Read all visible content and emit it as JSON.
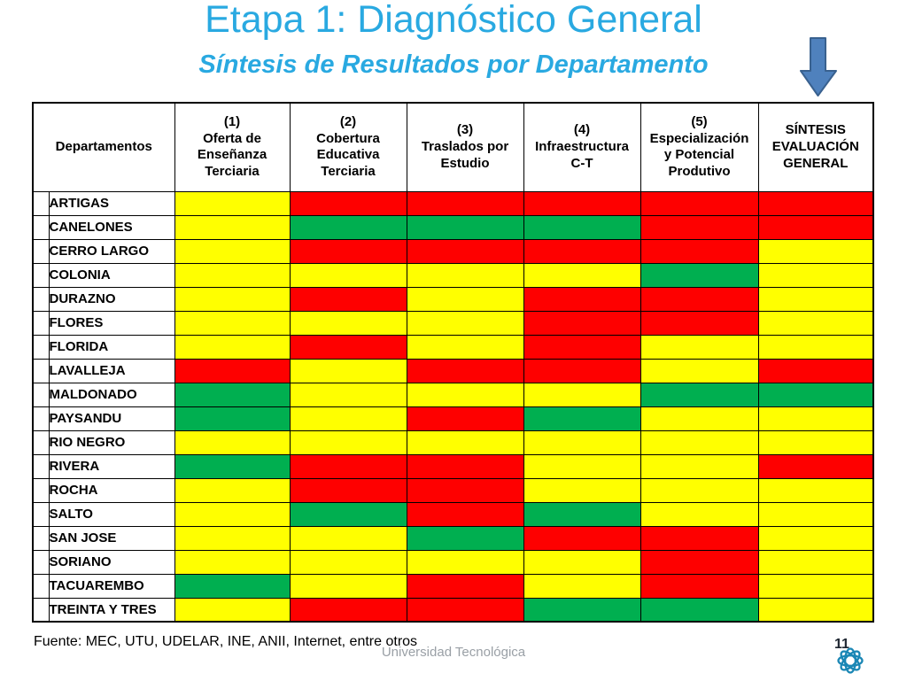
{
  "slide": {
    "title": "Etapa 1: Diagnóstico General",
    "subtitle": "Síntesis de Resultados por Departamento"
  },
  "table": {
    "columns": [
      "Departamentos",
      "(1)\nOferta de\nEnseñanza\nTerciaria",
      "(2)\nCobertura\nEducativa\nTerciaria",
      "(3)\nTraslados por\nEstudio",
      "(4)\nInfraestructura\nC-T",
      "(5)\nEspecialización\ny Potencial\nProdutivo",
      "SÍNTESIS\nEVALUACIÓN\nGENERAL"
    ],
    "rows": [
      {
        "name": "ARTIGAS",
        "ratings": [
          "yellow",
          "red",
          "red",
          "red",
          "red",
          "red"
        ]
      },
      {
        "name": "CANELONES",
        "ratings": [
          "yellow",
          "green",
          "green",
          "green",
          "red",
          "red"
        ]
      },
      {
        "name": "CERRO LARGO",
        "ratings": [
          "yellow",
          "red",
          "red",
          "red",
          "red",
          "yellow"
        ]
      },
      {
        "name": "COLONIA",
        "ratings": [
          "yellow",
          "yellow",
          "yellow",
          "yellow",
          "green",
          "yellow"
        ]
      },
      {
        "name": "DURAZNO",
        "ratings": [
          "yellow",
          "red",
          "yellow",
          "red",
          "red",
          "yellow"
        ]
      },
      {
        "name": "FLORES",
        "ratings": [
          "yellow",
          "yellow",
          "yellow",
          "red",
          "red",
          "yellow"
        ]
      },
      {
        "name": "FLORIDA",
        "ratings": [
          "yellow",
          "red",
          "yellow",
          "red",
          "yellow",
          "yellow"
        ]
      },
      {
        "name": "LAVALLEJA",
        "ratings": [
          "red",
          "yellow",
          "red",
          "red",
          "yellow",
          "red"
        ]
      },
      {
        "name": "MALDONADO",
        "ratings": [
          "green",
          "yellow",
          "yellow",
          "yellow",
          "green",
          "green"
        ]
      },
      {
        "name": "PAYSANDU",
        "ratings": [
          "green",
          "yellow",
          "red",
          "green",
          "yellow",
          "yellow"
        ]
      },
      {
        "name": "RIO NEGRO",
        "ratings": [
          "yellow",
          "yellow",
          "yellow",
          "yellow",
          "yellow",
          "yellow"
        ]
      },
      {
        "name": "RIVERA",
        "ratings": [
          "green",
          "red",
          "red",
          "yellow",
          "yellow",
          "red"
        ]
      },
      {
        "name": "ROCHA",
        "ratings": [
          "yellow",
          "red",
          "red",
          "yellow",
          "yellow",
          "yellow"
        ]
      },
      {
        "name": "SALTO",
        "ratings": [
          "yellow",
          "green",
          "red",
          "green",
          "yellow",
          "yellow"
        ]
      },
      {
        "name": "SAN JOSE",
        "ratings": [
          "yellow",
          "yellow",
          "green",
          "red",
          "red",
          "yellow"
        ]
      },
      {
        "name": "SORIANO",
        "ratings": [
          "yellow",
          "yellow",
          "yellow",
          "yellow",
          "red",
          "yellow"
        ]
      },
      {
        "name": "TACUAREMBO",
        "ratings": [
          "green",
          "yellow",
          "red",
          "yellow",
          "red",
          "yellow"
        ]
      },
      {
        "name": "TREINTA Y TRES",
        "ratings": [
          "yellow",
          "red",
          "red",
          "green",
          "green",
          "yellow"
        ]
      }
    ]
  },
  "legend_colors": {
    "red": "#fe0000",
    "yellow": "#ffff00",
    "green": "#00af50"
  },
  "accent_colors": {
    "title_cyan": "#29a9e1",
    "arrow_fill": "#4f81bd",
    "arrow_stroke": "#39618f",
    "logo_teal": "#1b87b5"
  },
  "icons": {
    "arrow_down": "blue-down-arrow",
    "logo": "knot-logo"
  },
  "footer": {
    "source": "Fuente: MEC, UTU, UDELAR, INE, ANII, Internet, entre otros",
    "center": "Universidad Tecnológica",
    "page_number": "11"
  }
}
